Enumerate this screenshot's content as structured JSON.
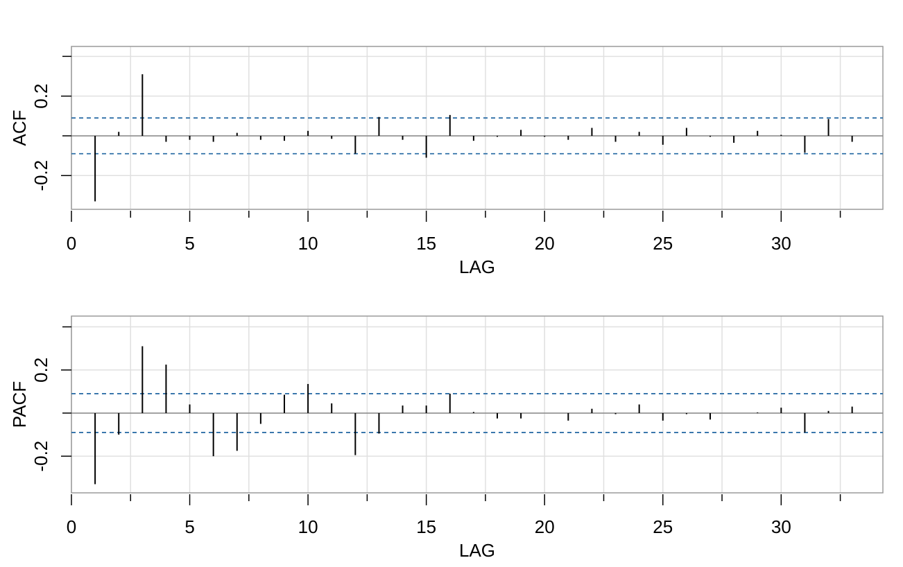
{
  "chart_data": [
    {
      "type": "bar",
      "style": "needle",
      "xlabel": "LAG",
      "ylabel": "ACF",
      "xlim": [
        0,
        34.3
      ],
      "ylim": [
        -0.37,
        0.45
      ],
      "x_ticks": [
        0,
        5,
        10,
        15,
        20,
        25,
        30
      ],
      "x_minor_ticks": [
        2.5,
        7.5,
        12.5,
        17.5,
        22.5,
        27.5,
        32.5
      ],
      "y_ticks": [
        -0.2,
        0.2
      ],
      "y_minor_ticks": [
        0.4,
        0.0,
        -0.4
      ],
      "grid": true,
      "confidence_bound": 0.09,
      "colors": {
        "bars": "#000000",
        "bound": "#2e6fa7",
        "zero_line": "#888888",
        "grid": "#e0e0e0",
        "frame": "#9a9a9a"
      },
      "x": [
        1,
        2,
        3,
        4,
        5,
        6,
        7,
        8,
        9,
        10,
        11,
        12,
        13,
        14,
        15,
        16,
        17,
        18,
        19,
        20,
        21,
        22,
        23,
        24,
        25,
        26,
        27,
        28,
        29,
        30,
        31,
        32,
        33
      ],
      "values": [
        -0.33,
        0.02,
        0.31,
        -0.03,
        -0.02,
        -0.03,
        0.015,
        -0.02,
        -0.025,
        0.025,
        -0.015,
        -0.09,
        0.095,
        -0.02,
        -0.11,
        0.105,
        -0.025,
        -0.005,
        0.03,
        -0.005,
        -0.02,
        0.04,
        -0.03,
        0.02,
        -0.045,
        0.04,
        -0.005,
        -0.035,
        0.025,
        0.005,
        -0.085,
        0.085,
        -0.03
      ]
    },
    {
      "type": "bar",
      "style": "needle",
      "xlabel": "LAG",
      "ylabel": "PACF",
      "xlim": [
        0,
        34.3
      ],
      "ylim": [
        -0.37,
        0.45
      ],
      "x_ticks": [
        0,
        5,
        10,
        15,
        20,
        25,
        30
      ],
      "x_minor_ticks": [
        2.5,
        7.5,
        12.5,
        17.5,
        22.5,
        27.5,
        32.5
      ],
      "y_ticks": [
        -0.2,
        0.2
      ],
      "y_minor_ticks": [
        0.4,
        0.0,
        -0.4
      ],
      "grid": true,
      "confidence_bound": 0.09,
      "colors": {
        "bars": "#000000",
        "bound": "#2e6fa7",
        "zero_line": "#888888",
        "grid": "#e0e0e0",
        "frame": "#9a9a9a"
      },
      "x": [
        1,
        2,
        3,
        4,
        5,
        6,
        7,
        8,
        9,
        10,
        11,
        12,
        13,
        14,
        15,
        16,
        17,
        18,
        19,
        20,
        21,
        22,
        23,
        24,
        25,
        26,
        27,
        28,
        29,
        30,
        31,
        32,
        33
      ],
      "values": [
        -0.33,
        -0.1,
        0.31,
        0.225,
        0.04,
        -0.2,
        -0.175,
        -0.05,
        0.085,
        0.135,
        0.045,
        -0.195,
        -0.095,
        0.035,
        0.035,
        0.09,
        0.005,
        -0.025,
        -0.025,
        0.0,
        -0.035,
        0.02,
        -0.005,
        0.04,
        -0.035,
        -0.005,
        -0.03,
        0.0,
        0.003,
        0.025,
        -0.09,
        0.01,
        0.03
      ]
    }
  ]
}
